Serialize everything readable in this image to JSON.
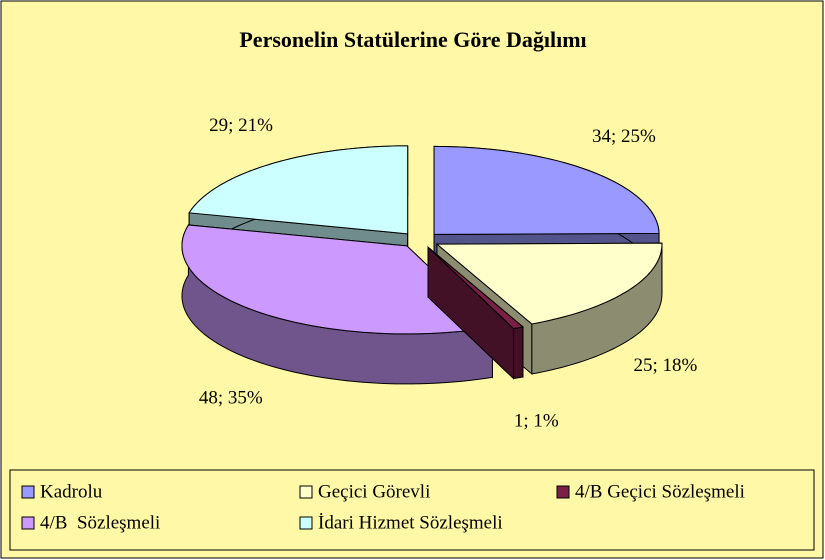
{
  "chart_data": {
    "type": "pie",
    "title": "Personelin Statülerine Göre Dağılımı",
    "categories": [
      "Kadrolu",
      "Geçici Görevli",
      "4/B Geçici Sözleşmeli",
      "4/B  Sözleşmeli",
      "İdari Hizmet Sözleşmeli"
    ],
    "values": [
      34,
      25,
      1,
      48,
      29
    ],
    "value_labels": [
      "34; 25%",
      "25; 18%",
      "1; 1%",
      "48; 35%",
      "29; 21%"
    ],
    "colors": [
      "#9999ff",
      "#ffffcc",
      "#7a1f45",
      "#cc99ff",
      "#ccffff"
    ],
    "legend": "bottom"
  }
}
